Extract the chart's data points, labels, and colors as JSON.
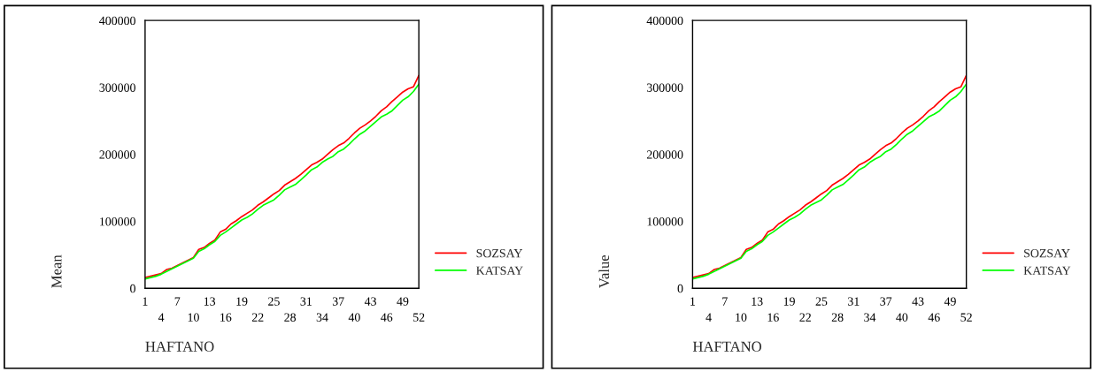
{
  "chart_data": [
    {
      "type": "line",
      "ylabel": "Mean",
      "xlabel": "HAFTANO",
      "categories": [
        "1",
        null,
        null,
        "4",
        null,
        null,
        "7",
        null,
        null,
        "10",
        null,
        null,
        "13",
        null,
        null,
        "16",
        null,
        null,
        "19",
        null,
        null,
        "22",
        null,
        null,
        "25",
        null,
        null,
        "28",
        null,
        null,
        "31",
        null,
        null,
        "34",
        null,
        null,
        "37",
        null,
        null,
        "40",
        null,
        null,
        "43",
        null,
        null,
        "46",
        null,
        null,
        "49",
        null,
        null,
        "52"
      ],
      "ylim": [
        0,
        400000
      ],
      "yticks": [
        0,
        100000,
        200000,
        300000,
        400000
      ],
      "grid": false,
      "legend": "right",
      "line_style": "solid",
      "series": [
        {
          "name": "SOZSAY",
          "color": "#ff0000",
          "values": [
            16000,
            18000,
            20000,
            22000,
            28000,
            30000,
            34000,
            38000,
            42000,
            46000,
            58000,
            61000,
            67000,
            72000,
            84000,
            88000,
            96000,
            101000,
            107000,
            112000,
            117000,
            124000,
            129000,
            135000,
            141000,
            146000,
            154000,
            159000,
            164000,
            170000,
            177000,
            184000,
            188000,
            193000,
            200000,
            207000,
            213000,
            217000,
            224000,
            232000,
            239000,
            244000,
            250000,
            257000,
            265000,
            271000,
            279000,
            286000,
            293000,
            298000,
            301000,
            318000
          ]
        },
        {
          "name": "KATSAY",
          "color": "#00ff00",
          "values": [
            14000,
            16000,
            18000,
            21000,
            25000,
            29000,
            33000,
            37000,
            41000,
            45000,
            55000,
            59000,
            65000,
            70000,
            79000,
            84000,
            90000,
            96000,
            102000,
            106000,
            111000,
            118000,
            124000,
            128000,
            132000,
            139000,
            147000,
            151000,
            155000,
            162000,
            169000,
            177000,
            181000,
            188000,
            193000,
            197000,
            204000,
            208000,
            215000,
            223000,
            230000,
            235000,
            242000,
            249000,
            256000,
            260000,
            265000,
            273000,
            281000,
            286000,
            294000,
            305000
          ]
        }
      ]
    },
    {
      "type": "line",
      "ylabel": "Value",
      "xlabel": "HAFTANO",
      "categories": [
        "1",
        null,
        null,
        "4",
        null,
        null,
        "7",
        null,
        null,
        "10",
        null,
        null,
        "13",
        null,
        null,
        "16",
        null,
        null,
        "19",
        null,
        null,
        "22",
        null,
        null,
        "25",
        null,
        null,
        "28",
        null,
        null,
        "31",
        null,
        null,
        "34",
        null,
        null,
        "37",
        null,
        null,
        "40",
        null,
        null,
        "43",
        null,
        null,
        "46",
        null,
        null,
        "49",
        null,
        null,
        "52"
      ],
      "ylim": [
        0,
        400000
      ],
      "yticks": [
        0,
        100000,
        200000,
        300000,
        400000
      ],
      "grid": false,
      "legend": "right",
      "line_style": "solid",
      "series": [
        {
          "name": "SOZSAY",
          "color": "#ff0000",
          "values": [
            16000,
            18000,
            20000,
            22000,
            28000,
            30000,
            34000,
            38000,
            42000,
            46000,
            58000,
            61000,
            67000,
            72000,
            84000,
            88000,
            96000,
            101000,
            107000,
            112000,
            117000,
            124000,
            129000,
            135000,
            141000,
            146000,
            154000,
            159000,
            164000,
            170000,
            177000,
            184000,
            188000,
            193000,
            200000,
            207000,
            213000,
            217000,
            224000,
            232000,
            239000,
            244000,
            250000,
            257000,
            265000,
            271000,
            279000,
            286000,
            293000,
            298000,
            301000,
            318000
          ]
        },
        {
          "name": "KATSAY",
          "color": "#00ff00",
          "values": [
            14000,
            16000,
            18000,
            21000,
            25000,
            29000,
            33000,
            37000,
            41000,
            45000,
            55000,
            59000,
            65000,
            70000,
            79000,
            84000,
            90000,
            96000,
            102000,
            106000,
            111000,
            118000,
            124000,
            128000,
            132000,
            139000,
            147000,
            151000,
            155000,
            162000,
            169000,
            177000,
            181000,
            188000,
            193000,
            197000,
            204000,
            208000,
            215000,
            223000,
            230000,
            235000,
            242000,
            249000,
            256000,
            260000,
            265000,
            273000,
            281000,
            286000,
            294000,
            305000
          ]
        }
      ]
    }
  ]
}
